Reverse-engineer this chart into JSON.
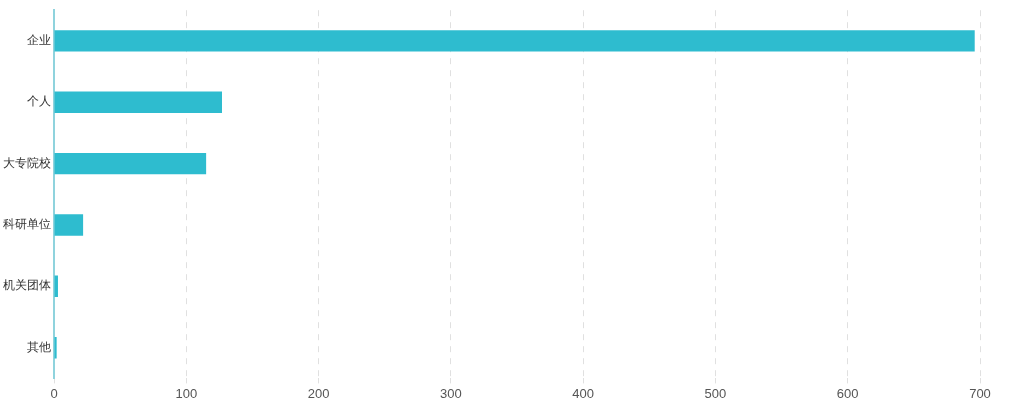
{
  "chart_data": {
    "type": "bar",
    "orientation": "horizontal",
    "categories": [
      "企业",
      "个人",
      "大专院校",
      "科研单位",
      "机关团体",
      "其他"
    ],
    "values": [
      696,
      127,
      115,
      22,
      3,
      2
    ],
    "color": "#2ebccf",
    "xlim": [
      0,
      700
    ],
    "xticks": [
      0,
      100,
      200,
      300,
      400,
      500,
      600,
      700
    ],
    "grid": "x",
    "legend": false
  }
}
